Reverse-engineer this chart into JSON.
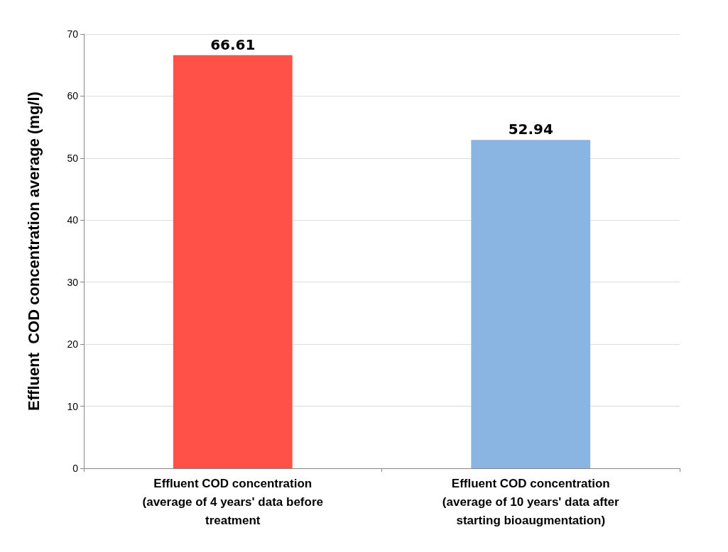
{
  "chart_data": {
    "type": "bar",
    "ylabel": "Effluent  COD concentration average (mg/l)",
    "categories": [
      "Effluent COD concentration\n(average of 4 years' data before\ntreatment",
      "Effluent COD concentration\n(average of 10 years' data after\nstarting bioaugmentation)"
    ],
    "values": [
      66.61,
      52.94
    ],
    "colors": [
      "#ff5147",
      "#8ab4e2"
    ],
    "ylim": [
      0,
      70
    ],
    "yticks": [
      0,
      10,
      20,
      30,
      40,
      50,
      60,
      70
    ],
    "grid": "y",
    "data_labels": true
  }
}
